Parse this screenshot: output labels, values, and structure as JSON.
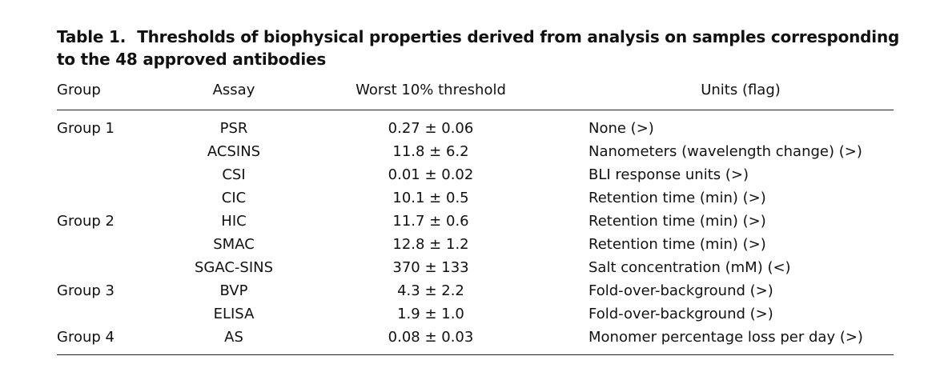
{
  "table": {
    "label": "Table 1.",
    "title": "Thresholds of biophysical properties derived from analysis on samples corresponding to the 48 approved antibodies",
    "columns": [
      "Group",
      "Assay",
      "Worst 10% threshold",
      "Units (flag)"
    ],
    "rows": [
      {
        "group": "Group 1",
        "assay": "PSR",
        "threshold": "0.27 ± 0.06",
        "units": "None (>)"
      },
      {
        "group": "",
        "assay": "ACSINS",
        "threshold": "11.8 ± 6.2",
        "units": "Nanometers (wavelength change) (>)"
      },
      {
        "group": "",
        "assay": "CSI",
        "threshold": "0.01 ± 0.02",
        "units": "BLI response units (>)"
      },
      {
        "group": "",
        "assay": "CIC",
        "threshold": "10.1 ± 0.5",
        "units": "Retention time (min) (>)"
      },
      {
        "group": "Group 2",
        "assay": "HIC",
        "threshold": "11.7 ± 0.6",
        "units": "Retention time (min) (>)"
      },
      {
        "group": "",
        "assay": "SMAC",
        "threshold": "12.8 ± 1.2",
        "units": "Retention time (min) (>)"
      },
      {
        "group": "",
        "assay": "SGAC-SINS",
        "threshold": "370 ± 133",
        "units": "Salt concentration (mM) (<)"
      },
      {
        "group": "Group 3",
        "assay": "BVP",
        "threshold": "4.3 ± 2.2",
        "units": "Fold-over-background (>)"
      },
      {
        "group": "",
        "assay": "ELISA",
        "threshold": "1.9 ± 1.0",
        "units": "Fold-over-background (>)"
      },
      {
        "group": "Group 4",
        "assay": "AS",
        "threshold": "0.08 ± 0.03",
        "units": "Monomer percentage loss per day (>)"
      }
    ]
  }
}
